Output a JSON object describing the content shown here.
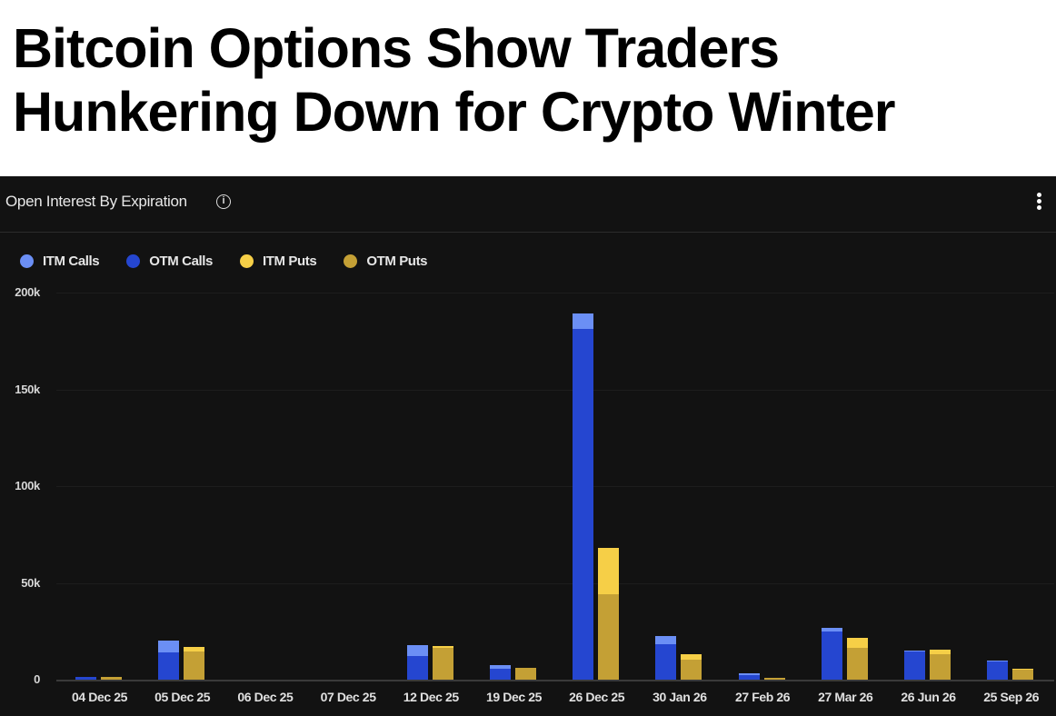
{
  "headline": "Bitcoin Options Show Traders Hunkering Down for Crypto Winter",
  "panel": {
    "title": "Open Interest By Expiration",
    "info_icon": "info-icon",
    "menu_icon": "kebab-menu-icon"
  },
  "colors": {
    "itm_calls": "#6b8ff5",
    "otm_calls": "#2546d0",
    "itm_puts": "#f6cf47",
    "otm_puts": "#c4a035",
    "background": "#121212"
  },
  "chart_data": {
    "type": "bar",
    "stacked": true,
    "title": "Open Interest By Expiration",
    "xlabel": "",
    "ylabel": "",
    "ylim": [
      0,
      200000
    ],
    "yticks": [
      0,
      50000,
      100000,
      150000,
      200000
    ],
    "ytick_labels": [
      "0",
      "50k",
      "100k",
      "150k",
      "200k"
    ],
    "legend_position": "top-left",
    "grid": true,
    "legend": [
      "ITM Calls",
      "OTM Calls",
      "ITM Puts",
      "OTM Puts"
    ],
    "categories": [
      "04 Dec 25",
      "05 Dec 25",
      "06 Dec 25",
      "07 Dec 25",
      "12 Dec 25",
      "19 Dec 25",
      "26 Dec 25",
      "30 Jan 26",
      "27 Feb 26",
      "27 Mar 26",
      "26 Jun 26",
      "25 Sep 26"
    ],
    "series": [
      {
        "name": "ITM Calls",
        "stack": "calls",
        "values": [
          300,
          6000,
          0,
          0,
          6000,
          2000,
          8000,
          4000,
          1000,
          2000,
          500,
          500
        ]
      },
      {
        "name": "OTM Calls",
        "stack": "calls",
        "values": [
          1200,
          14000,
          0,
          0,
          12000,
          5500,
          181000,
          18500,
          2500,
          25000,
          14500,
          9500
        ]
      },
      {
        "name": "ITM Puts",
        "stack": "puts",
        "values": [
          200,
          2500,
          0,
          0,
          1000,
          0,
          24000,
          2500,
          0,
          5000,
          2500,
          300
        ]
      },
      {
        "name": "OTM Puts",
        "stack": "puts",
        "values": [
          1300,
          14500,
          0,
          0,
          16500,
          6000,
          44000,
          10500,
          800,
          16500,
          13000,
          5200
        ]
      }
    ]
  }
}
